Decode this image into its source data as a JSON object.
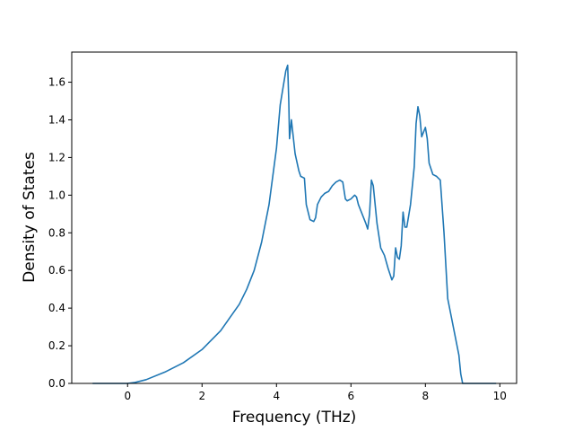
{
  "chart_data": {
    "type": "line",
    "title": "",
    "xlabel": "Frequency (THz)",
    "ylabel": "Density of States",
    "xlim": [
      -1.5,
      10.45
    ],
    "ylim": [
      0.0,
      1.76
    ],
    "xticks": [
      0,
      2,
      4,
      6,
      8,
      10
    ],
    "xtick_labels": [
      "0",
      "2",
      "4",
      "6",
      "8",
      "10"
    ],
    "yticks": [
      0.0,
      0.2,
      0.4,
      0.6,
      0.8,
      1.0,
      1.2,
      1.4,
      1.6
    ],
    "ytick_labels": [
      "0.0",
      "0.2",
      "0.4",
      "0.6",
      "0.8",
      "1.0",
      "1.2",
      "1.4",
      "1.6"
    ],
    "grid": false,
    "line_color": "#1f77b4",
    "series": [
      {
        "x": [
          -0.94,
          -0.5,
          0.0,
          0.2,
          0.5,
          1.0,
          1.5,
          2.0,
          2.5,
          3.0,
          3.2,
          3.4,
          3.6,
          3.8,
          3.9,
          4.0,
          4.1,
          4.2,
          4.25,
          4.3,
          4.33,
          4.35,
          4.4,
          4.5,
          4.6,
          4.65,
          4.75,
          4.8,
          4.9,
          5.0,
          5.05,
          5.1,
          5.2,
          5.3,
          5.4,
          5.5,
          5.6,
          5.7,
          5.78,
          5.85,
          5.9,
          6.0,
          6.1,
          6.15,
          6.2,
          6.3,
          6.4,
          6.45,
          6.5,
          6.55,
          6.6,
          6.7,
          6.8,
          6.9,
          7.0,
          7.1,
          7.15,
          7.2,
          7.25,
          7.3,
          7.35,
          7.4,
          7.45,
          7.5,
          7.6,
          7.7,
          7.75,
          7.8,
          7.85,
          7.9,
          8.0,
          8.05,
          8.1,
          8.2,
          8.3,
          8.4,
          8.5,
          8.6,
          8.7,
          8.8,
          8.9,
          8.95,
          9.0,
          9.05,
          9.2,
          9.5,
          9.9
        ],
        "y": [
          0.0,
          0.0,
          0.0,
          0.005,
          0.02,
          0.06,
          0.11,
          0.18,
          0.28,
          0.42,
          0.5,
          0.6,
          0.75,
          0.95,
          1.1,
          1.25,
          1.48,
          1.6,
          1.66,
          1.69,
          1.5,
          1.3,
          1.4,
          1.22,
          1.13,
          1.1,
          1.09,
          0.95,
          0.87,
          0.86,
          0.88,
          0.95,
          0.99,
          1.01,
          1.02,
          1.05,
          1.07,
          1.08,
          1.07,
          0.98,
          0.97,
          0.98,
          1.0,
          0.99,
          0.95,
          0.9,
          0.85,
          0.82,
          0.9,
          1.08,
          1.05,
          0.85,
          0.72,
          0.68,
          0.61,
          0.55,
          0.57,
          0.72,
          0.67,
          0.66,
          0.73,
          0.91,
          0.83,
          0.83,
          0.95,
          1.15,
          1.38,
          1.47,
          1.42,
          1.31,
          1.36,
          1.3,
          1.17,
          1.11,
          1.1,
          1.08,
          0.8,
          0.45,
          0.35,
          0.25,
          0.15,
          0.05,
          0.0,
          0.0,
          0.0,
          0.0,
          0.0
        ]
      }
    ]
  }
}
